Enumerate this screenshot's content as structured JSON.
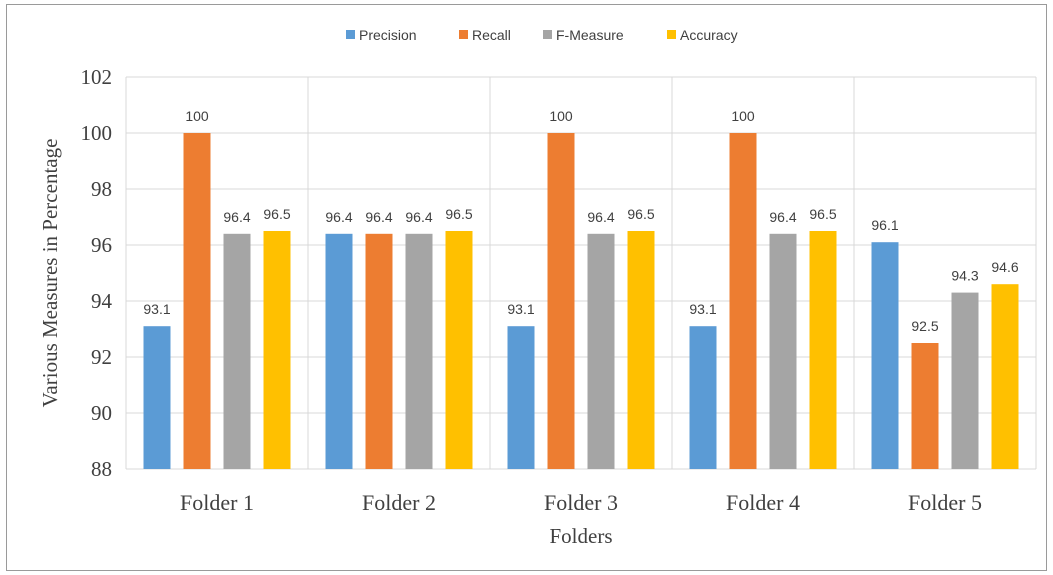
{
  "chart_data": {
    "type": "bar",
    "categories": [
      "Folder 1",
      "Folder 2",
      "Folder 3",
      "Folder 4",
      "Folder 5"
    ],
    "series": [
      {
        "name": "Precision",
        "color": "#5b9bd5",
        "values": [
          93.1,
          96.4,
          93.1,
          93.1,
          96.1
        ]
      },
      {
        "name": "Recall",
        "color": "#ed7d31",
        "values": [
          100,
          96.4,
          100,
          100,
          92.5
        ]
      },
      {
        "name": "F-Measure",
        "color": "#a5a5a5",
        "values": [
          96.4,
          96.4,
          96.4,
          96.4,
          94.3
        ]
      },
      {
        "name": "Accuracy",
        "color": "#ffc000",
        "values": [
          96.5,
          96.5,
          96.5,
          96.5,
          94.6
        ]
      }
    ],
    "title": "",
    "xlabel": "Folders",
    "ylabel": "Various Measures in Percentage",
    "ylim": [
      88,
      102
    ],
    "yticks": [
      88,
      90,
      92,
      94,
      96,
      98,
      100,
      102
    ],
    "grid": true,
    "legend_position": "top"
  }
}
